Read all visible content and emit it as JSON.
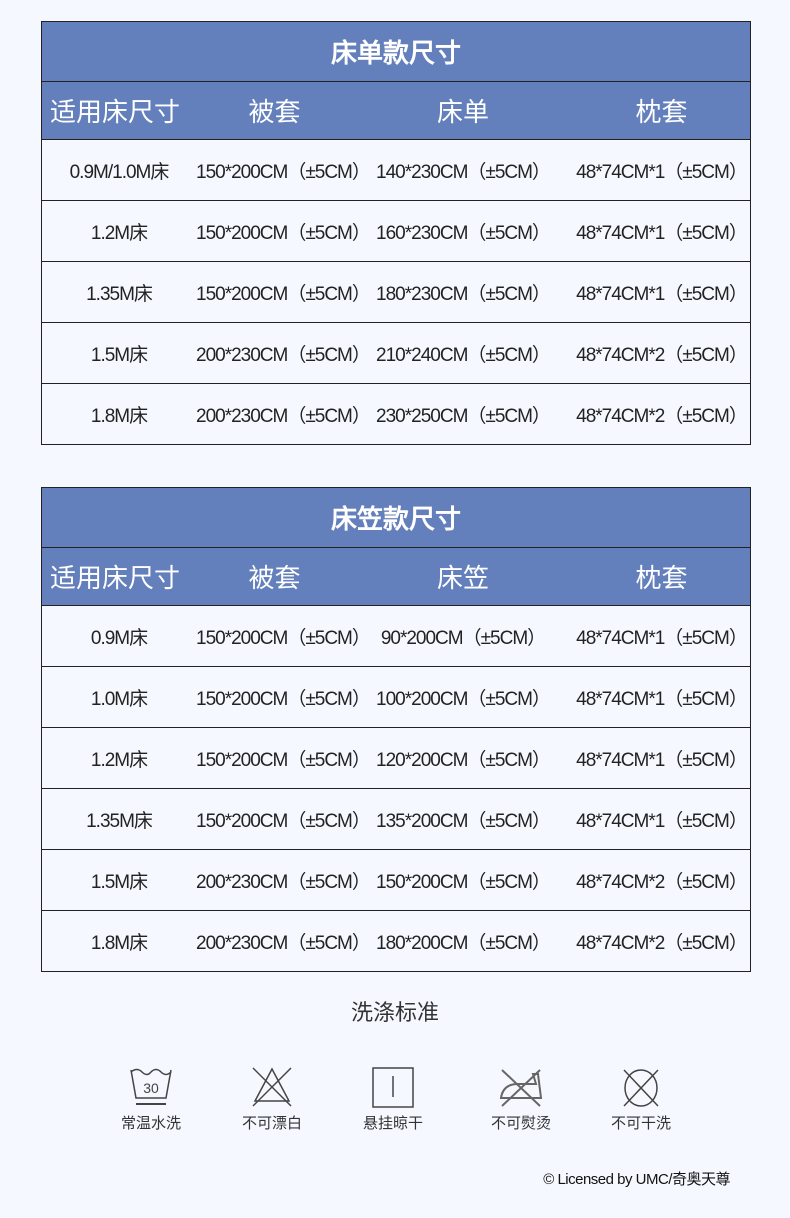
{
  "colors": {
    "header_bg": "#6480bc",
    "page_bg": "#f5f9ff"
  },
  "sheet_table": {
    "title": "床单款尺寸",
    "headers": [
      "适用床尺寸",
      "被套",
      "床单",
      "枕套"
    ],
    "rows": [
      [
        "0.9M/1.0M床",
        "150*200CM（±5CM）",
        "140*230CM（±5CM）",
        "48*74CM*1（±5CM）"
      ],
      [
        "1.2M床",
        "150*200CM（±5CM）",
        "160*230CM（±5CM）",
        "48*74CM*1（±5CM）"
      ],
      [
        "1.35M床",
        "150*200CM（±5CM）",
        "180*230CM（±5CM）",
        "48*74CM*1（±5CM）"
      ],
      [
        "1.5M床",
        "200*230CM（±5CM）",
        "210*240CM（±5CM）",
        "48*74CM*2（±5CM）"
      ],
      [
        "1.8M床",
        "200*230CM（±5CM）",
        "230*250CM（±5CM）",
        "48*74CM*2（±5CM）"
      ]
    ]
  },
  "fitted_table": {
    "title": "床笠款尺寸",
    "headers": [
      "适用床尺寸",
      "被套",
      "床笠",
      "枕套"
    ],
    "rows": [
      [
        "0.9M床",
        "150*200CM（±5CM）",
        "90*200CM（±5CM）",
        "48*74CM*1（±5CM）"
      ],
      [
        "1.0M床",
        "150*200CM（±5CM）",
        "100*200CM（±5CM）",
        "48*74CM*1（±5CM）"
      ],
      [
        "1.2M床",
        "150*200CM（±5CM）",
        "120*200CM（±5CM）",
        "48*74CM*1（±5CM）"
      ],
      [
        "1.35M床",
        "150*200CM（±5CM）",
        "135*200CM（±5CM）",
        "48*74CM*1（±5CM）"
      ],
      [
        "1.5M床",
        "200*230CM（±5CM）",
        "150*200CM（±5CM）",
        "48*74CM*2（±5CM）"
      ],
      [
        "1.8M床",
        "200*230CM（±5CM）",
        "180*200CM（±5CM）",
        "48*74CM*2（±5CM）"
      ]
    ]
  },
  "care": {
    "title": "洗涤标准",
    "items": [
      {
        "icon": "wash-30-icon",
        "label": "常温水洗",
        "temp": "30"
      },
      {
        "icon": "no-bleach-icon",
        "label": "不可漂白"
      },
      {
        "icon": "line-dry-icon",
        "label": "悬挂晾干"
      },
      {
        "icon": "no-iron-icon",
        "label": "不可熨烫"
      },
      {
        "icon": "no-dry-clean-icon",
        "label": "不可干洗"
      }
    ]
  },
  "license": "© Licensed by UMC/奇奥天尊"
}
